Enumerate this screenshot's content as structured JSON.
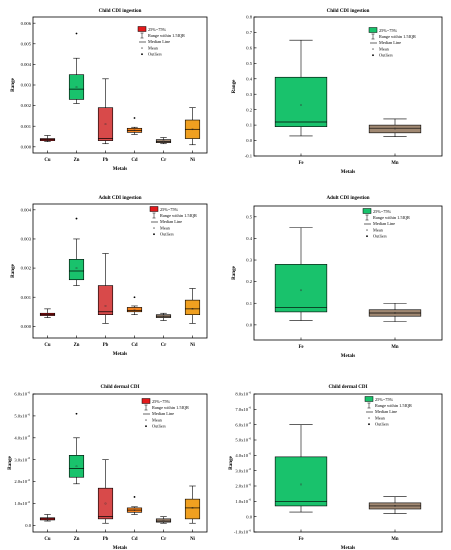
{
  "colors": {
    "Cu": "#e31a1c",
    "Zn": "#19c26c",
    "Pb": "#d84a4a",
    "Cd": "#f4831f",
    "Cr": "#a08872",
    "Ni": "#f0a020",
    "Fe": "#19c26c",
    "Mn": "#a08872"
  },
  "chart_data": [
    {
      "type": "box",
      "title": "Child CDI ingestion",
      "xlabel": "Metals",
      "ylabel": "Range",
      "ylim": [
        -0.0003,
        0.0063
      ],
      "yticks": [
        "0.000",
        "0.001",
        "0.002",
        "0.003",
        "0.004",
        "0.005",
        "0.006"
      ],
      "legend_position": "top-right",
      "legend_colorkey": "Cu",
      "legend": [
        "25%~75%",
        "Range within 1.5IQR",
        "Median Line",
        "Mean",
        "Outliers"
      ],
      "boxes": [
        {
          "category": "Cu",
          "color_key": "Cu",
          "q1": 0.0003,
          "median": 0.00035,
          "q3": 0.0004,
          "whisker_low": 0.00025,
          "whisker_high": 0.00055,
          "mean": 0.00035,
          "outliers": []
        },
        {
          "category": "Zn",
          "color_key": "Zn",
          "q1": 0.0023,
          "median": 0.0028,
          "q3": 0.0035,
          "whisker_low": 0.0021,
          "whisker_high": 0.0043,
          "mean": 0.0029,
          "outliers": [
            0.0055
          ]
        },
        {
          "category": "Pb",
          "color_key": "Pb",
          "q1": 0.0003,
          "median": 0.0004,
          "q3": 0.0019,
          "whisker_low": 0.00015,
          "whisker_high": 0.0033,
          "mean": 0.0011,
          "outliers": []
        },
        {
          "category": "Cd",
          "color_key": "Cd",
          "q1": 0.0007,
          "median": 0.0008,
          "q3": 0.0009,
          "whisker_low": 0.0006,
          "whisker_high": 0.00095,
          "mean": 0.0008,
          "outliers": [
            0.0014
          ]
        },
        {
          "category": "Cr",
          "color_key": "Cr",
          "q1": 0.0002,
          "median": 0.00025,
          "q3": 0.00035,
          "whisker_low": 0.00015,
          "whisker_high": 0.00045,
          "mean": 0.00028,
          "outliers": []
        },
        {
          "category": "Ni",
          "color_key": "Ni",
          "q1": 0.0004,
          "median": 0.00085,
          "q3": 0.0013,
          "whisker_low": 0.0001,
          "whisker_high": 0.0019,
          "mean": 0.00085,
          "outliers": []
        }
      ]
    },
    {
      "type": "box",
      "title": "Child CDI ingestion",
      "xlabel": "Metals",
      "ylabel": "Range",
      "ylim": [
        -0.1,
        0.8
      ],
      "yticks": [
        "-0.1",
        "0.0",
        "0.1",
        "0.2",
        "0.3",
        "0.4",
        "0.5",
        "0.6",
        "0.7",
        "0.8"
      ],
      "legend_position": "top-right",
      "legend_colorkey": "Fe",
      "legend": [
        "25%~75%",
        "Range within 1.5IQR",
        "Median Line",
        "Mean",
        "Outliers"
      ],
      "boxes": [
        {
          "category": "Fe",
          "color_key": "Fe",
          "q1": 0.09,
          "median": 0.12,
          "q3": 0.41,
          "whisker_low": 0.03,
          "whisker_high": 0.65,
          "mean": 0.23,
          "outliers": []
        },
        {
          "category": "Mn",
          "color_key": "Mn",
          "q1": 0.05,
          "median": 0.08,
          "q3": 0.1,
          "whisker_low": 0.025,
          "whisker_high": 0.14,
          "mean": 0.078,
          "outliers": []
        }
      ]
    },
    {
      "type": "box",
      "title": "Adult CDI ingestion",
      "xlabel": "Metals",
      "ylabel": "Range",
      "ylim": [
        -0.0004,
        0.0042
      ],
      "yticks": [
        "0.000",
        "0.001",
        "0.002",
        "0.003",
        "0.004"
      ],
      "legend_position": "top-right",
      "legend_colorkey": "Cu",
      "legend": [
        "25%~75%",
        "Range within 1.5IQR",
        "Median Line",
        "Mean",
        "Outliers"
      ],
      "boxes": [
        {
          "category": "Cu",
          "color_key": "Cu",
          "q1": 0.00037,
          "median": 0.0004,
          "q3": 0.00045,
          "whisker_low": 0.0003,
          "whisker_high": 0.0006,
          "mean": 0.0004,
          "outliers": []
        },
        {
          "category": "Zn",
          "color_key": "Zn",
          "q1": 0.0016,
          "median": 0.0019,
          "q3": 0.0023,
          "whisker_low": 0.0014,
          "whisker_high": 0.003,
          "mean": 0.002,
          "outliers": [
            0.0037
          ]
        },
        {
          "category": "Pb",
          "color_key": "Pb",
          "q1": 0.0004,
          "median": 0.0005,
          "q3": 0.0014,
          "whisker_low": 0.0001,
          "whisker_high": 0.0025,
          "mean": 0.0007,
          "outliers": []
        },
        {
          "category": "Cd",
          "color_key": "Cd",
          "q1": 0.0005,
          "median": 0.00055,
          "q3": 0.00065,
          "whisker_low": 0.0004,
          "whisker_high": 0.0007,
          "mean": 0.00056,
          "outliers": [
            0.001
          ]
        },
        {
          "category": "Cr",
          "color_key": "Cr",
          "q1": 0.0003,
          "median": 0.00035,
          "q3": 0.0004,
          "whisker_low": 0.0002,
          "whisker_high": 0.00045,
          "mean": 0.00035,
          "outliers": []
        },
        {
          "category": "Ni",
          "color_key": "Ni",
          "q1": 0.0004,
          "median": 0.0006,
          "q3": 0.0009,
          "whisker_low": 0.0001,
          "whisker_high": 0.0013,
          "mean": 0.0006,
          "outliers": []
        }
      ]
    },
    {
      "type": "box",
      "title": "Adult CDI ingestion",
      "xlabel": "Metals",
      "ylabel": "Range",
      "ylim": [
        -0.07,
        0.55
      ],
      "yticks": [
        "0.0",
        "0.1",
        "0.2",
        "0.3",
        "0.4",
        "0.5"
      ],
      "legend_position": "top-right",
      "legend_colorkey": "Fe",
      "legend": [
        "25%~75%",
        "Range within 1.5IQR",
        "Median Line",
        "Mean",
        "Outliers"
      ],
      "boxes": [
        {
          "category": "Fe",
          "color_key": "Fe",
          "q1": 0.06,
          "median": 0.08,
          "q3": 0.28,
          "whisker_low": 0.02,
          "whisker_high": 0.45,
          "mean": 0.16,
          "outliers": []
        },
        {
          "category": "Mn",
          "color_key": "Mn",
          "q1": 0.04,
          "median": 0.055,
          "q3": 0.07,
          "whisker_low": 0.015,
          "whisker_high": 0.1,
          "mean": 0.055,
          "outliers": []
        }
      ]
    },
    {
      "type": "box",
      "title": "Child dermal CDI",
      "xlabel": "Metals",
      "ylabel": "Range",
      "ylim": [
        -3e-07,
        6e-06
      ],
      "yticks": [
        "0.0",
        "1.0x10",
        "2.0x10",
        "3.0x10",
        "4.0x10",
        "5.0x10",
        "6.0x10"
      ],
      "ytick_exp": [
        "",
        "-6",
        "-6",
        "-6",
        "-6",
        "-6",
        "-6"
      ],
      "legend_position": "top-right",
      "legend_colorkey": "Cu",
      "legend": [
        "25%~75%",
        "Range within 1.5IQR",
        "Median Line",
        "Mean",
        "Outliers"
      ],
      "boxes": [
        {
          "category": "Cu",
          "color_key": "Cu",
          "q1": 2.5e-07,
          "median": 3e-07,
          "q3": 3.5e-07,
          "whisker_low": 2e-07,
          "whisker_high": 5e-07,
          "mean": 3e-07,
          "outliers": []
        },
        {
          "category": "Zn",
          "color_key": "Zn",
          "q1": 2.2e-06,
          "median": 2.6e-06,
          "q3": 3.2e-06,
          "whisker_low": 1.9e-06,
          "whisker_high": 4e-06,
          "mean": 2.7e-06,
          "outliers": [
            5.1e-06
          ]
        },
        {
          "category": "Pb",
          "color_key": "Pb",
          "q1": 3e-07,
          "median": 4e-07,
          "q3": 1.7e-06,
          "whisker_low": 1e-07,
          "whisker_high": 3e-06,
          "mean": 1e-06,
          "outliers": []
        },
        {
          "category": "Cd",
          "color_key": "Cd",
          "q1": 6e-07,
          "median": 7e-07,
          "q3": 8e-07,
          "whisker_low": 5e-07,
          "whisker_high": 8.5e-07,
          "mean": 7e-07,
          "outliers": [
            1.3e-06
          ]
        },
        {
          "category": "Cr",
          "color_key": "Cr",
          "q1": 1.5e-07,
          "median": 2e-07,
          "q3": 3e-07,
          "whisker_low": 1e-07,
          "whisker_high": 4e-07,
          "mean": 2.2e-07,
          "outliers": []
        },
        {
          "category": "Ni",
          "color_key": "Ni",
          "q1": 3e-07,
          "median": 8e-07,
          "q3": 1.2e-06,
          "whisker_low": 1e-07,
          "whisker_high": 1.8e-06,
          "mean": 8e-07,
          "outliers": []
        }
      ]
    },
    {
      "type": "box",
      "title": "Child dermal CDI",
      "xlabel": "Metals",
      "ylabel": "Range",
      "ylim": [
        -1e-06,
        8e-06
      ],
      "yticks": [
        "-1.0x10",
        "0.0",
        "1.0x10",
        "2.0x10",
        "3.0x10",
        "4.0x10",
        "5.0x10",
        "6.0x10",
        "7.0x10",
        "8.0x10"
      ],
      "ytick_exp": [
        "-6",
        "",
        "-6",
        "-6",
        "-6",
        "-6",
        "-6",
        "-6",
        "-6",
        "-6"
      ],
      "legend_position": "top-right",
      "legend_colorkey": "Fe",
      "legend": [
        "25%~75%",
        "Range within 1.5IQR",
        "Median Line",
        "Mean",
        "Outliers"
      ],
      "boxes": [
        {
          "category": "Fe",
          "color_key": "Fe",
          "q1": 7e-07,
          "median": 1e-06,
          "q3": 3.9e-06,
          "whisker_low": 3e-07,
          "whisker_high": 6e-06,
          "mean": 2.1e-06,
          "outliers": []
        },
        {
          "category": "Mn",
          "color_key": "Mn",
          "q1": 5e-07,
          "median": 7e-07,
          "q3": 9e-07,
          "whisker_low": 2e-07,
          "whisker_high": 1.3e-06,
          "mean": 7e-07,
          "outliers": []
        }
      ]
    }
  ]
}
